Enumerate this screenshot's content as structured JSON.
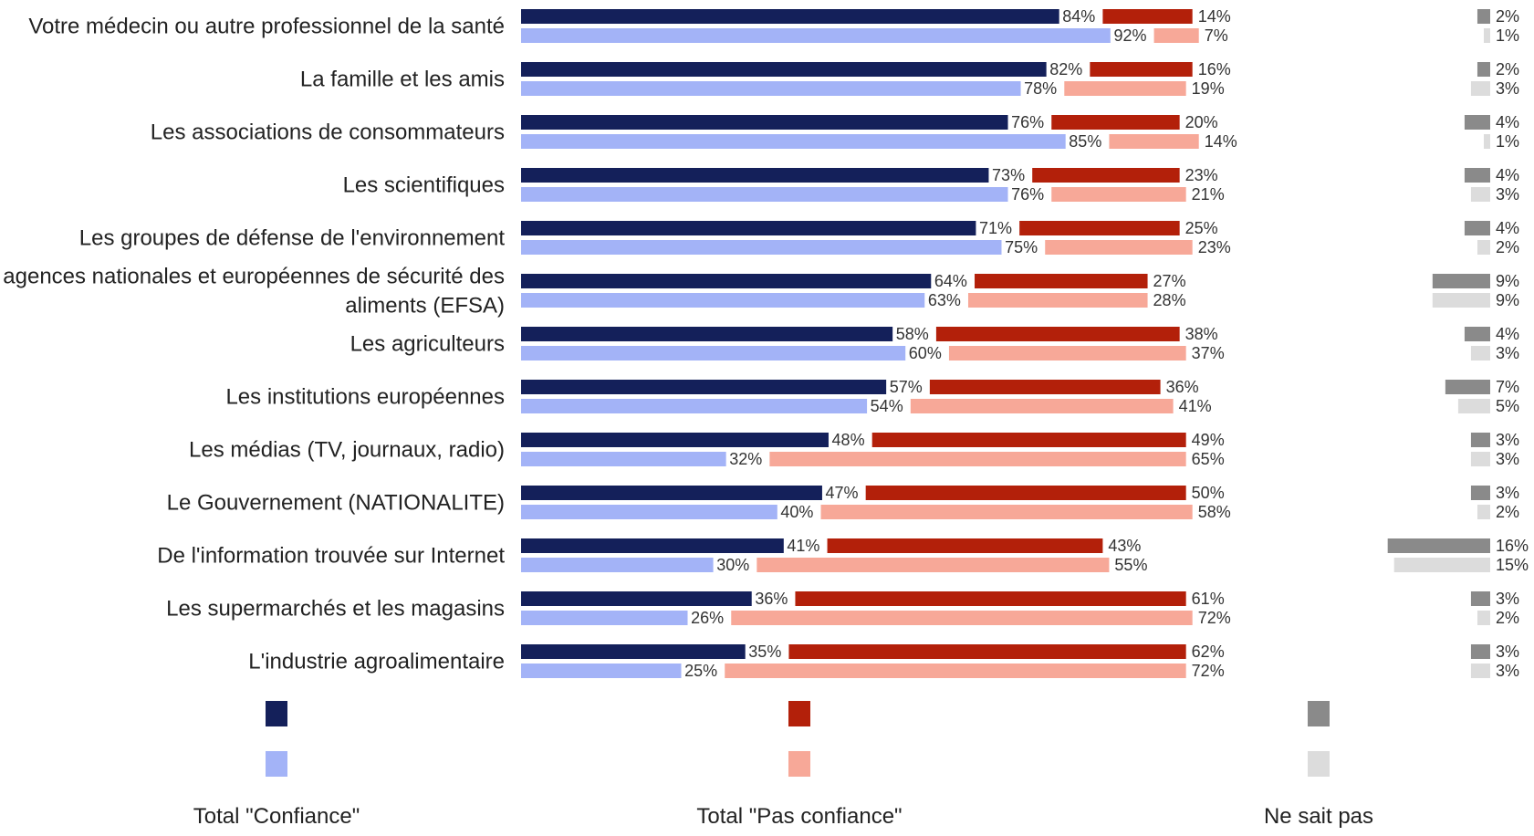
{
  "chart_data": {
    "type": "bar",
    "orientation": "horizontal",
    "stacked": true,
    "categories": [
      [
        "Votre médecin ou autre professionnel de la santé"
      ],
      [
        "La famille et les amis"
      ],
      [
        "Les associations de consommateurs"
      ],
      [
        "Les scientifiques"
      ],
      [
        "Les groupes de défense de l'environnement"
      ],
      [
        "Les agences nationales et européennes de sécurité des",
        "aliments (EFSA)"
      ],
      [
        "Les agriculteurs"
      ],
      [
        "Les institutions européennes"
      ],
      [
        "Les médias (TV, journaux, radio)"
      ],
      [
        "Le Gouvernement (NATIONALITE)"
      ],
      [
        "De l'information trouvée sur Internet"
      ],
      [
        "Les supermarchés et les magasins"
      ],
      [
        "L'industrie agroalimentaire"
      ]
    ],
    "rows": [
      {
        "confiance": [
          84,
          92
        ],
        "pas_confiance": [
          14,
          7
        ],
        "ne_sait_pas": [
          2,
          1
        ]
      },
      {
        "confiance": [
          82,
          78
        ],
        "pas_confiance": [
          16,
          19
        ],
        "ne_sait_pas": [
          2,
          3
        ]
      },
      {
        "confiance": [
          76,
          85
        ],
        "pas_confiance": [
          20,
          14
        ],
        "ne_sait_pas": [
          4,
          1
        ]
      },
      {
        "confiance": [
          73,
          76
        ],
        "pas_confiance": [
          23,
          21
        ],
        "ne_sait_pas": [
          4,
          3
        ]
      },
      {
        "confiance": [
          71,
          75
        ],
        "pas_confiance": [
          25,
          23
        ],
        "ne_sait_pas": [
          4,
          2
        ]
      },
      {
        "confiance": [
          64,
          63
        ],
        "pas_confiance": [
          27,
          28
        ],
        "ne_sait_pas": [
          9,
          9
        ]
      },
      {
        "confiance": [
          58,
          60
        ],
        "pas_confiance": [
          38,
          37
        ],
        "ne_sait_pas": [
          4,
          3
        ]
      },
      {
        "confiance": [
          57,
          54
        ],
        "pas_confiance": [
          36,
          41
        ],
        "ne_sait_pas": [
          7,
          5
        ]
      },
      {
        "confiance": [
          48,
          32
        ],
        "pas_confiance": [
          49,
          65
        ],
        "ne_sait_pas": [
          3,
          3
        ]
      },
      {
        "confiance": [
          47,
          40
        ],
        "pas_confiance": [
          50,
          58
        ],
        "ne_sait_pas": [
          3,
          2
        ]
      },
      {
        "confiance": [
          41,
          30
        ],
        "pas_confiance": [
          43,
          55
        ],
        "ne_sait_pas": [
          16,
          15
        ]
      },
      {
        "confiance": [
          36,
          26
        ],
        "pas_confiance": [
          61,
          72
        ],
        "ne_sait_pas": [
          3,
          2
        ]
      },
      {
        "confiance": [
          35,
          25
        ],
        "pas_confiance": [
          62,
          72
        ],
        "ne_sait_pas": [
          3,
          3
        ]
      }
    ],
    "legend": [
      {
        "key": "confiance",
        "label": "Total \"Confiance\"",
        "colors": [
          "#14205a",
          "#a3b3f7"
        ]
      },
      {
        "key": "pas_confiance",
        "label": "Total \"Pas confiance\"",
        "colors": [
          "#b3200a",
          "#f7a898"
        ]
      },
      {
        "key": "ne_sait_pas",
        "label": "Ne sait pas",
        "colors": [
          "#8a8a8a",
          "#dcdcdc"
        ]
      }
    ],
    "value_suffix": "%",
    "legend_position": "bottom",
    "grid": false,
    "xlim": [
      0,
      100
    ]
  }
}
